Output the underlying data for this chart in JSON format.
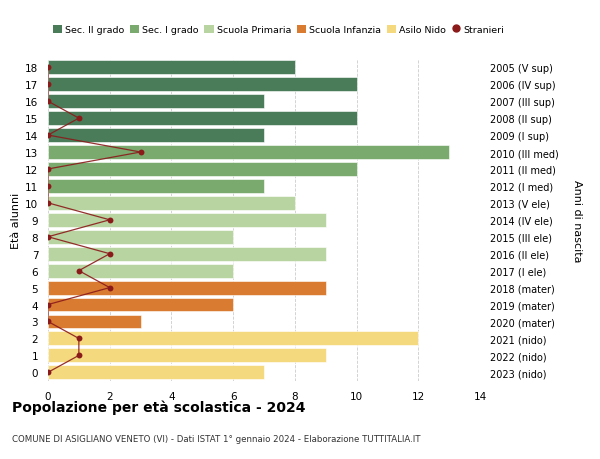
{
  "ages": [
    18,
    17,
    16,
    15,
    14,
    13,
    12,
    11,
    10,
    9,
    8,
    7,
    6,
    5,
    4,
    3,
    2,
    1,
    0
  ],
  "bar_values": [
    8,
    10,
    7,
    10,
    7,
    13,
    10,
    7,
    8,
    9,
    6,
    9,
    6,
    9,
    6,
    3,
    12,
    9,
    7
  ],
  "stranieri": [
    0,
    0,
    0,
    1,
    0,
    3,
    0,
    0,
    0,
    2,
    0,
    2,
    1,
    2,
    0,
    0,
    1,
    1,
    0
  ],
  "right_labels": [
    "2005 (V sup)",
    "2006 (IV sup)",
    "2007 (III sup)",
    "2008 (II sup)",
    "2009 (I sup)",
    "2010 (III med)",
    "2011 (II med)",
    "2012 (I med)",
    "2013 (V ele)",
    "2014 (IV ele)",
    "2015 (III ele)",
    "2016 (II ele)",
    "2017 (I ele)",
    "2018 (mater)",
    "2019 (mater)",
    "2020 (mater)",
    "2021 (nido)",
    "2022 (nido)",
    "2023 (nido)"
  ],
  "bar_colors": [
    "#4a7c59",
    "#4a7c59",
    "#4a7c59",
    "#4a7c59",
    "#4a7c59",
    "#7aaa6e",
    "#7aaa6e",
    "#7aaa6e",
    "#b8d4a0",
    "#b8d4a0",
    "#b8d4a0",
    "#b8d4a0",
    "#b8d4a0",
    "#d97b30",
    "#d97b30",
    "#d97b30",
    "#f5d97e",
    "#f5d97e",
    "#f5d97e"
  ],
  "legend_labels": [
    "Sec. II grado",
    "Sec. I grado",
    "Scuola Primaria",
    "Scuola Infanzia",
    "Asilo Nido",
    "Stranieri"
  ],
  "legend_colors": [
    "#4a7c59",
    "#7aaa6e",
    "#b8d4a0",
    "#d97b30",
    "#f5d97e",
    "#8b1a1a"
  ],
  "ylabel_left": "Età alunni",
  "ylabel_right": "Anni di nascita",
  "title": "Popolazione per età scolastica - 2024",
  "subtitle": "COMUNE DI ASIGLIANO VENETO (VI) - Dati ISTAT 1° gennaio 2024 - Elaborazione TUTTITALIA.IT",
  "xlim": [
    0,
    14
  ],
  "xticks": [
    0,
    2,
    4,
    6,
    8,
    10,
    12,
    14
  ],
  "stranieri_color": "#8b1a1a",
  "bg_color": "#ffffff",
  "grid_color": "#cccccc"
}
